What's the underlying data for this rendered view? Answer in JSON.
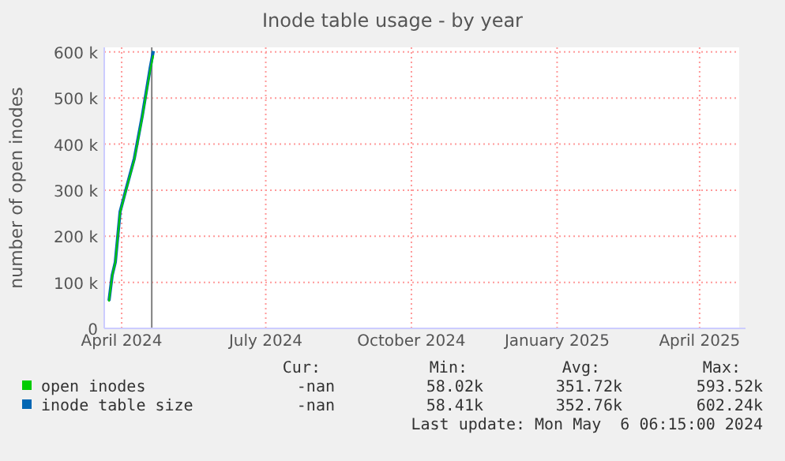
{
  "chart_data": {
    "type": "line",
    "title": "Inode table usage - by year",
    "ylabel": "number of open inodes",
    "xlim": [
      "2024-03-21",
      "2025-04-26"
    ],
    "xticks": [
      {
        "value": "2024-04-01",
        "label": "April 2024"
      },
      {
        "value": "2024-07-01",
        "label": "July 2024"
      },
      {
        "value": "2024-10-01",
        "label": "October 2024"
      },
      {
        "value": "2025-01-01",
        "label": "January 2025"
      },
      {
        "value": "2025-04-01",
        "label": "April 2025"
      }
    ],
    "ylim": [
      0,
      610000
    ],
    "yticks": [
      {
        "value": 0,
        "label": "0"
      },
      {
        "value": 100000,
        "label": "100 k"
      },
      {
        "value": 200000,
        "label": "200 k"
      },
      {
        "value": 300000,
        "label": "300 k"
      },
      {
        "value": 400000,
        "label": "400 k"
      },
      {
        "value": 500000,
        "label": "500 k"
      },
      {
        "value": 600000,
        "label": "600 k"
      }
    ],
    "x": [
      "2024-03-24",
      "2024-03-26",
      "2024-03-28",
      "2024-03-31",
      "2024-04-04",
      "2024-04-09",
      "2024-04-14",
      "2024-04-19",
      "2024-04-21"
    ],
    "series": [
      {
        "name": "open inodes",
        "color": "#00cc00",
        "values": [
          58000,
          114000,
          143000,
          251000,
          303000,
          366000,
          457000,
          560000,
          593000
        ]
      },
      {
        "name": "inode table size",
        "color": "#0066b3",
        "values": [
          60000,
          115000,
          144000,
          253000,
          305000,
          369000,
          461000,
          565000,
          602000
        ]
      }
    ],
    "ref_lines": [
      {
        "axis": "x",
        "value": "2024-04-20",
        "color": "#808080"
      }
    ],
    "grid": true,
    "legend": "bottom left",
    "annotations": [
      "Cur:",
      "Min:",
      "Avg:",
      "Max:",
      "-nan",
      "58.02k",
      "351.72k",
      "593.52k",
      "-nan",
      "58.41k",
      "352.76k",
      "602.24k",
      "Last update: Mon May  6 06:15:00 2024"
    ]
  }
}
